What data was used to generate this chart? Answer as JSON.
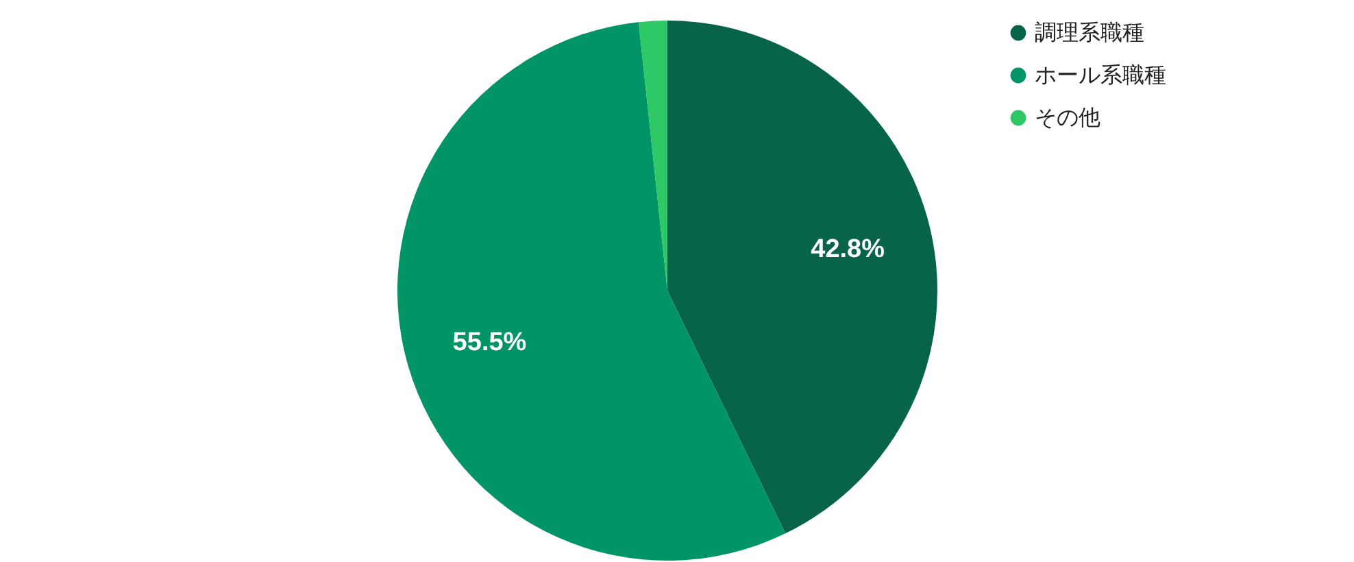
{
  "chart_data": {
    "type": "pie",
    "categories": [
      "調理系職種",
      "ホール系職種",
      "その他"
    ],
    "values": [
      42.8,
      55.5,
      1.7
    ],
    "colors": [
      "#076349",
      "#009466",
      "#2ec866"
    ],
    "value_labels": [
      "42.8%",
      "55.5%",
      null
    ],
    "legend": "top right"
  }
}
